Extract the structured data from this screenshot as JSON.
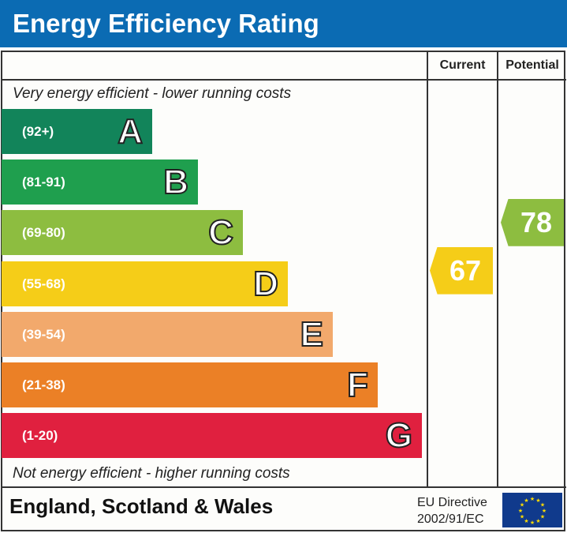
{
  "title": "Energy Efficiency Rating",
  "columns": {
    "current": "Current",
    "potential": "Potential"
  },
  "top_note": "Very energy efficient - lower running costs",
  "bottom_note": "Not energy efficient - higher running costs",
  "footer": {
    "region": "England, Scotland & Wales",
    "directive_line1": "EU Directive",
    "directive_line2": "2002/91/EC",
    "flag_icon": "eu-flag-icon"
  },
  "chart_data": {
    "type": "bar",
    "categories": [
      "A",
      "B",
      "C",
      "D",
      "E",
      "F",
      "G"
    ],
    "ranges": [
      "(92+)",
      "(81-91)",
      "(69-80)",
      "(55-68)",
      "(39-54)",
      "(21-38)",
      "(1-20)"
    ],
    "colors": [
      "#12845a",
      "#1f9f4e",
      "#8dbd40",
      "#f5cd18",
      "#f2a96c",
      "#eb8026",
      "#e0203f"
    ],
    "current": {
      "value": 67,
      "band": "D",
      "color": "#f5cd18"
    },
    "potential": {
      "value": 78,
      "band": "C",
      "color": "#8dbd40"
    }
  }
}
